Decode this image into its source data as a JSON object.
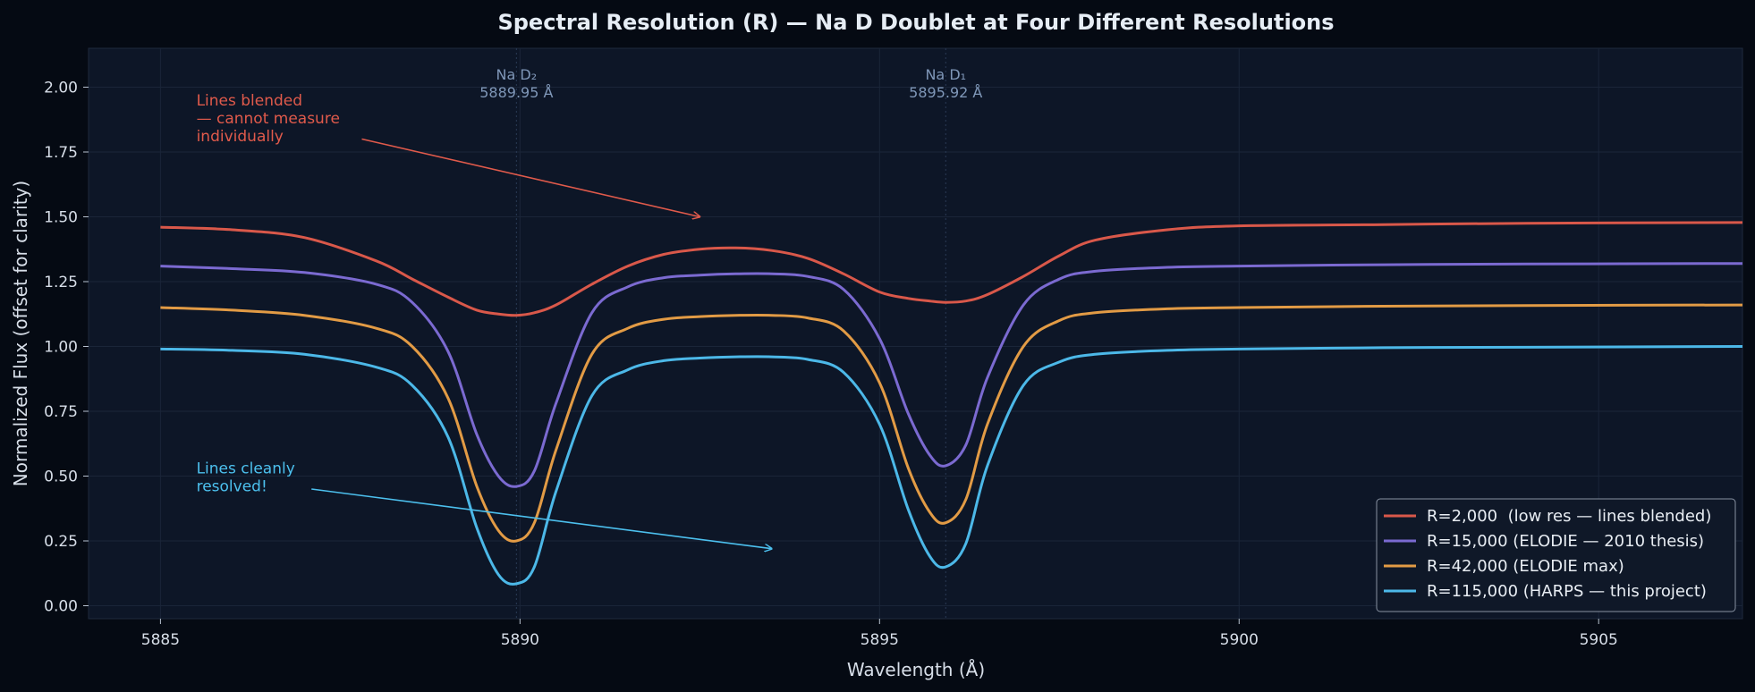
{
  "chart_data": {
    "type": "line",
    "title": "Spectral Resolution (R) — Na D Doublet at Four Different Resolutions",
    "xlabel": "Wavelength (Å)",
    "ylabel": "Normalized Flux (offset for clarity)",
    "xlim": [
      5884,
      5907
    ],
    "ylim": [
      -0.05,
      2.15
    ],
    "xticks": [
      5885,
      5890,
      5895,
      5900,
      5905
    ],
    "yticks": [
      0.0,
      0.25,
      0.5,
      0.75,
      1.0,
      1.25,
      1.5,
      1.75,
      2.0
    ],
    "grid": true,
    "legend_position": "lower-right",
    "line_markers": [
      {
        "name": "Na D₂",
        "wavelength_label": "5889.95 Å",
        "x": 5889.95
      },
      {
        "name": "Na D₁",
        "wavelength_label": "5895.92 Å",
        "x": 5895.92
      }
    ],
    "annotations": [
      {
        "lines": [
          "Lines blended",
          "— cannot measure",
          "individually"
        ],
        "text_x": 5885.5,
        "text_y": 1.93,
        "arrow_from": [
          5887.8,
          1.8
        ],
        "arrow_to": [
          5892.5,
          1.5
        ],
        "color": "#e05a4b"
      },
      {
        "lines": [
          "Lines cleanly",
          "resolved!"
        ],
        "text_x": 5885.5,
        "text_y": 0.51,
        "arrow_from": [
          5887.1,
          0.45
        ],
        "arrow_to": [
          5893.5,
          0.22
        ],
        "color": "#4cc0ee"
      }
    ],
    "x": [
      5885,
      5886,
      5887,
      5888,
      5888.5,
      5889,
      5889.4,
      5889.7,
      5889.95,
      5890.2,
      5890.5,
      5891,
      5891.5,
      5892,
      5892.5,
      5893,
      5893.5,
      5894,
      5894.5,
      5895,
      5895.4,
      5895.7,
      5895.92,
      5896.2,
      5896.5,
      5897,
      5897.5,
      5898,
      5899,
      5900,
      5902,
      5904,
      5907
    ],
    "series": [
      {
        "name": "R=2,000  (low res — lines blended)",
        "color": "#d9584a",
        "values": [
          1.46,
          1.45,
          1.42,
          1.33,
          1.26,
          1.19,
          1.14,
          1.125,
          1.12,
          1.13,
          1.16,
          1.24,
          1.31,
          1.355,
          1.375,
          1.38,
          1.37,
          1.34,
          1.28,
          1.21,
          1.185,
          1.175,
          1.17,
          1.175,
          1.2,
          1.27,
          1.35,
          1.41,
          1.45,
          1.465,
          1.47,
          1.475,
          1.478
        ]
      },
      {
        "name": "R=15,000 (ELODIE — 2010 thesis)",
        "color": "#7b6ad1",
        "values": [
          1.31,
          1.3,
          1.285,
          1.24,
          1.17,
          0.98,
          0.66,
          0.5,
          0.46,
          0.52,
          0.78,
          1.13,
          1.23,
          1.265,
          1.275,
          1.28,
          1.28,
          1.27,
          1.22,
          1.03,
          0.74,
          0.58,
          0.54,
          0.62,
          0.88,
          1.16,
          1.26,
          1.29,
          1.305,
          1.31,
          1.315,
          1.318,
          1.32
        ]
      },
      {
        "name": "R=42,000 (ELODIE max)",
        "color": "#e29b45",
        "values": [
          1.15,
          1.14,
          1.12,
          1.07,
          1.0,
          0.8,
          0.46,
          0.29,
          0.25,
          0.32,
          0.6,
          0.97,
          1.07,
          1.105,
          1.115,
          1.12,
          1.12,
          1.11,
          1.06,
          0.86,
          0.53,
          0.36,
          0.32,
          0.41,
          0.7,
          1.0,
          1.1,
          1.13,
          1.145,
          1.15,
          1.155,
          1.158,
          1.16
        ]
      },
      {
        "name": "R=115,000 (HARPS — this project)",
        "color": "#4cb8e8",
        "values": [
          0.99,
          0.985,
          0.97,
          0.92,
          0.85,
          0.65,
          0.3,
          0.12,
          0.085,
          0.15,
          0.44,
          0.81,
          0.91,
          0.945,
          0.955,
          0.96,
          0.96,
          0.95,
          0.9,
          0.7,
          0.37,
          0.19,
          0.15,
          0.24,
          0.54,
          0.85,
          0.94,
          0.97,
          0.985,
          0.99,
          0.995,
          0.997,
          1.0
        ]
      }
    ]
  }
}
